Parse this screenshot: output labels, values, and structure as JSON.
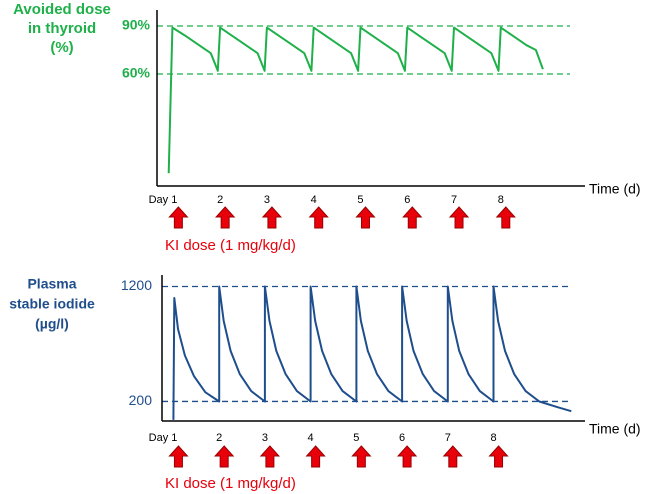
{
  "chart_data": [
    {
      "type": "line",
      "y_label": [
        "Avoided dose",
        "in thyroid",
        "(%)"
      ],
      "x_label": "Time (d)",
      "annotation": "KI dose (1 mg/kg/d)",
      "xlim": [
        0.65,
        9.8
      ],
      "ylim": [
        -10,
        100
      ],
      "xticks": [
        {
          "value": 1,
          "label": "Day 1"
        },
        2,
        3,
        4,
        5,
        6,
        7,
        8
      ],
      "yticks": [
        {
          "value": 90,
          "label": "90%"
        },
        {
          "value": 60,
          "label": "60%"
        }
      ],
      "grid": true,
      "color": "#1fb04a",
      "x": [
        0.9,
        0.98,
        1.25,
        1.55,
        1.8,
        1.95,
        2.0,
        2.25,
        2.55,
        2.8,
        2.95,
        3.0,
        3.25,
        3.55,
        3.8,
        3.95,
        4.0,
        4.25,
        4.55,
        4.8,
        4.95,
        5.0,
        5.25,
        5.55,
        5.8,
        5.95,
        6.0,
        6.25,
        6.55,
        6.8,
        6.95,
        7.0,
        7.25,
        7.55,
        7.8,
        7.95,
        8.0,
        8.25,
        8.55,
        8.75,
        8.9
      ],
      "values": [
        -2,
        89,
        84,
        78,
        73,
        62,
        89,
        84,
        78,
        73,
        62,
        89,
        84,
        78,
        73,
        62,
        89,
        84,
        78,
        73,
        62,
        89,
        84,
        78,
        73,
        62,
        89,
        84,
        78,
        73,
        62,
        89,
        84,
        78,
        73,
        62,
        89,
        84,
        78,
        75,
        63
      ]
    },
    {
      "type": "line",
      "y_label": [
        "Plasma",
        "stable iodide",
        "(µg/l)"
      ],
      "x_label": "Time (d)",
      "annotation": "KI dose (1 mg/kg/d)",
      "xlim": [
        0.75,
        10
      ],
      "ylim": [
        30,
        1300
      ],
      "xticks": [
        {
          "value": 1,
          "label": "Day 1"
        },
        2,
        3,
        4,
        5,
        6,
        7,
        8
      ],
      "yticks": [
        1200,
        200
      ],
      "grid": true,
      "color": "#1f4e8c",
      "x": [
        1.0,
        1.02,
        1.1,
        1.25,
        1.45,
        1.7,
        2.0,
        2.0,
        2.1,
        2.25,
        2.45,
        2.7,
        3.0,
        3.0,
        3.1,
        3.25,
        3.45,
        3.7,
        4.0,
        4.0,
        4.1,
        4.25,
        4.45,
        4.7,
        5.0,
        5.0,
        5.1,
        5.25,
        5.45,
        5.7,
        6.0,
        6.0,
        6.1,
        6.25,
        6.45,
        6.7,
        7.0,
        7.0,
        7.1,
        7.25,
        7.45,
        7.7,
        8.0,
        8.0,
        8.1,
        8.25,
        8.45,
        8.7,
        9.0,
        9.4,
        9.7
      ],
      "values": [
        40,
        1100,
        830,
        600,
        420,
        280,
        200,
        1200,
        900,
        640,
        440,
        290,
        200,
        1200,
        900,
        640,
        440,
        290,
        200,
        1200,
        900,
        640,
        440,
        290,
        200,
        1200,
        900,
        640,
        440,
        290,
        200,
        1200,
        900,
        640,
        440,
        290,
        200,
        1200,
        900,
        640,
        440,
        290,
        200,
        1200,
        900,
        640,
        440,
        290,
        200,
        150,
        115
      ]
    }
  ]
}
